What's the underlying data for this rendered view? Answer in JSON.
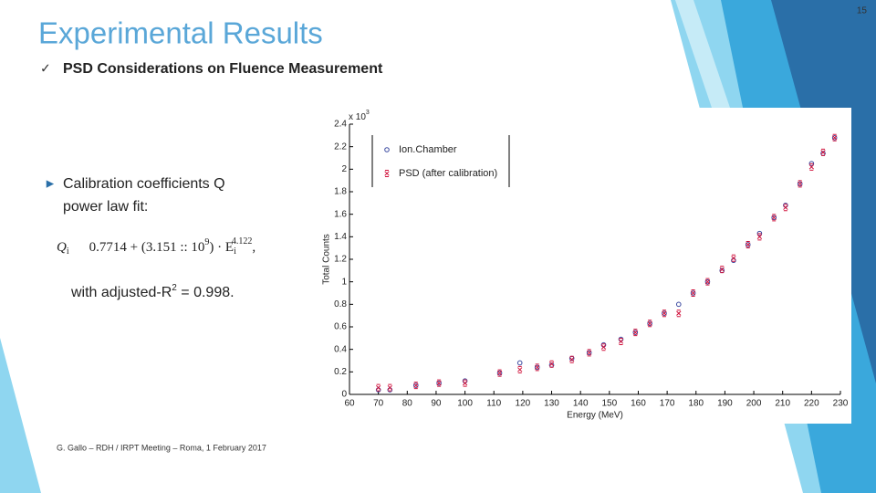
{
  "slide": {
    "title": "Experimental Results",
    "check": "✓",
    "subtitle": "PSD Considerations on Fluence Measurement",
    "bullet": "►",
    "bullet_lines": [
      "Calibration coefficients Q",
      "power law fit:"
    ],
    "formula": {
      "lhs": "Q",
      "lhs_sub": "i",
      "body": "0.7714 + (3.151 :: 10",
      "body_sup": "9",
      "mid": ") · E",
      "e_sub": "i",
      "e_sup": "4.122",
      "end": ","
    },
    "r2": {
      "before": "with adjusted-R",
      "sup": "2",
      "after": " = 0.998."
    },
    "footer": "G. Gallo – RDH / IRPT  Meeting – Roma, 1 February 2017",
    "page_number": "15"
  },
  "chart_data": {
    "type": "scatter",
    "xlabel": "Energy (MeV)",
    "ylabel": "Total Counts",
    "y_multiplier": "x 10",
    "y_multiplier_exp": "3",
    "x": [
      70,
      74,
      83,
      91,
      100,
      112,
      119,
      125,
      130,
      137,
      143,
      148,
      154,
      159,
      164,
      169,
      174,
      179,
      184,
      189,
      193,
      198,
      202,
      207,
      211,
      216,
      220,
      224,
      228
    ],
    "series": [
      {
        "name": "Ion.Chamber",
        "color": "#3b4aa0",
        "marker": "circle",
        "values": [
          0.04,
          0.04,
          0.08,
          0.1,
          0.12,
          0.19,
          0.28,
          0.24,
          0.26,
          0.32,
          0.37,
          0.44,
          0.49,
          0.55,
          0.63,
          0.72,
          0.8,
          0.9,
          1.0,
          1.1,
          1.19,
          1.33,
          1.43,
          1.57,
          1.68,
          1.87,
          2.05,
          2.14,
          2.28
        ]
      },
      {
        "name": "PSD (after calibration)",
        "color": "#d0103a",
        "marker": "cross",
        "values": [
          0.06,
          0.06,
          0.08,
          0.1,
          0.1,
          0.19,
          0.22,
          0.24,
          0.27,
          0.31,
          0.37,
          0.42,
          0.47,
          0.55,
          0.63,
          0.72,
          0.72,
          0.9,
          1.0,
          1.11,
          1.21,
          1.33,
          1.4,
          1.57,
          1.66,
          1.87,
          2.02,
          2.15,
          2.28
        ]
      }
    ],
    "xlim": [
      60,
      230
    ],
    "xticks": [
      60,
      70,
      80,
      90,
      100,
      110,
      120,
      130,
      140,
      150,
      160,
      170,
      180,
      190,
      200,
      210,
      220,
      230
    ],
    "ylim": [
      0,
      2.4
    ],
    "yticks": [
      0,
      0.2,
      0.4,
      0.6,
      0.8,
      1,
      1.2,
      1.4,
      1.6,
      1.8,
      2,
      2.2,
      2.4
    ],
    "grid": false,
    "legend": "upper left"
  }
}
